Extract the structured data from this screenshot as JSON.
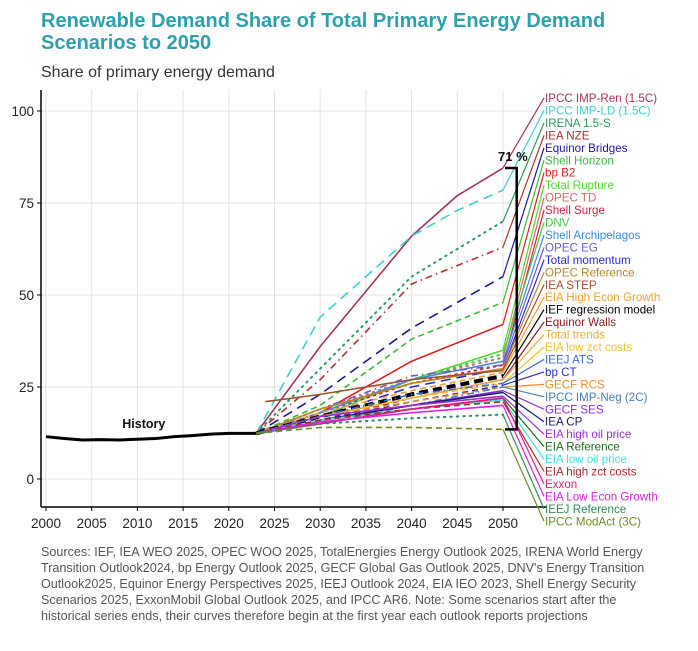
{
  "header": {
    "title": "Renewable Demand Share of Total Primary Energy Demand Scenarios to 2050",
    "subtitle": "Share of primary energy demand"
  },
  "footer": {
    "sources": "Sources: IEF, IEA WEO 2025, OPEC WOO 2025, TotalEnergies Energy Outlook 2025, IRENA World Energy Transition Outlook2024, bp Energy Outlook 2025, GECF Global Gas Outlook 2025, DNV's Energy Transition Outlook2025, Equinor Energy Perspectives 2025, IEEJ Outlook 2024, EIA IEO 2023, Shell Energy Security Scenarios 2025, ExxonMobil Global Outlook 2025, and IPCC AR6. Note: Some scenarios start after the historical series ends, their curves therefore begin at the first year each outlook reports projections"
  },
  "chart_data": {
    "type": "line",
    "title": "Renewable Demand Share of Total Primary Energy Demand Scenarios to 2050",
    "subtitle": "Share of primary energy demand",
    "xlabel": "",
    "ylabel": "Share of primary energy demand",
    "xlim": [
      1999.5,
      2060
    ],
    "ylim": [
      -7,
      106
    ],
    "x_ticks": [
      2000,
      2005,
      2010,
      2015,
      2020,
      2025,
      2030,
      2035,
      2040,
      2045,
      2050
    ],
    "y_ticks": [
      0,
      25,
      50,
      75,
      100
    ],
    "grid": true,
    "legend_placement": "right (direct labels)",
    "annotations": [
      {
        "text": "History",
        "x": 2009,
        "y": 15
      },
      {
        "text": "71 %",
        "x": 2050,
        "y": 88,
        "note": "range bracket between highest and lowest 2050 scenario"
      }
    ],
    "history": {
      "name": "History",
      "color": "#000000",
      "x": [
        2000,
        2002,
        2004,
        2006,
        2008,
        2010,
        2012,
        2014,
        2016,
        2018,
        2020,
        2023
      ],
      "y": [
        11.5,
        11.0,
        10.6,
        10.7,
        10.6,
        10.8,
        11.0,
        11.5,
        11.8,
        12.2,
        12.4,
        12.4
      ]
    },
    "series": [
      {
        "name": "IPCC IMP-Ren (1.5C)",
        "color": "#a3345a",
        "dash": "solid",
        "x": [
          2023,
          2030,
          2040,
          2045,
          2050
        ],
        "y": [
          12.4,
          36,
          66,
          77,
          84.5
        ]
      },
      {
        "name": "IPCC IMP-LD (1.5C)",
        "color": "#3fcfcf",
        "dash": "longdash",
        "x": [
          2023,
          2030,
          2040,
          2045,
          2050
        ],
        "y": [
          12.4,
          44,
          66,
          73,
          78.5
        ]
      },
      {
        "name": "IRENA 1.5-S",
        "color": "#2e9b5e",
        "dash": "dotted",
        "x": [
          2023,
          2030,
          2040,
          2050
        ],
        "y": [
          12.4,
          30,
          55,
          70
        ]
      },
      {
        "name": "IEA NZE",
        "color": "#b03030",
        "dash": "dashdot",
        "x": [
          2023,
          2030,
          2040,
          2050
        ],
        "y": [
          12.4,
          27,
          53,
          63
        ]
      },
      {
        "name": "Equinor Bridges",
        "color": "#1a1a9c",
        "dash": "longdash",
        "x": [
          2023,
          2030,
          2040,
          2050
        ],
        "y": [
          12.4,
          23,
          41,
          55
        ]
      },
      {
        "name": "Shell Horizon",
        "color": "#3cb83c",
        "dash": "dashed",
        "x": [
          2023,
          2030,
          2040,
          2050
        ],
        "y": [
          12.4,
          20,
          38,
          48
        ]
      },
      {
        "name": "bp B2",
        "color": "#e01e1e",
        "dash": "solid",
        "x": [
          2023,
          2030,
          2040,
          2050
        ],
        "y": [
          12.4,
          18,
          32,
          42
        ]
      },
      {
        "name": "Total Rupture",
        "color": "#4ddb2a",
        "dash": "solid",
        "x": [
          2023,
          2030,
          2040,
          2050
        ],
        "y": [
          12.4,
          17,
          27,
          35
        ]
      },
      {
        "name": "OPEC TD",
        "color": "#d46a6a",
        "dash": "dotted",
        "x": [
          2023,
          2030,
          2040,
          2050
        ],
        "y": [
          12.4,
          19,
          27,
          33
        ]
      },
      {
        "name": "Shell Surge",
        "color": "#d91e3c",
        "dash": "dotted",
        "x": [
          2023,
          2030,
          2040,
          2050
        ],
        "y": [
          12.4,
          18,
          26,
          31
        ]
      },
      {
        "name": "DNV",
        "color": "#46c846",
        "dash": "dotted",
        "x": [
          2023,
          2030,
          2040,
          2050
        ],
        "y": [
          12.4,
          18,
          27,
          34
        ]
      },
      {
        "name": "Shell Archipelagos",
        "color": "#3f8ae0",
        "dash": "solid",
        "x": [
          2023,
          2030,
          2040,
          2050
        ],
        "y": [
          12.4,
          18,
          27,
          32
        ]
      },
      {
        "name": "OPEC EG",
        "color": "#6a5acd",
        "dash": "dashdot",
        "x": [
          2023,
          2030,
          2040,
          2050
        ],
        "y": [
          12.4,
          19,
          28,
          31
        ]
      },
      {
        "name": "Total momentum",
        "color": "#2a2ad8",
        "dash": "longdash",
        "x": [
          2023,
          2030,
          2040,
          2050
        ],
        "y": [
          12.4,
          17,
          25,
          30
        ]
      },
      {
        "name": "OPEC Reference",
        "color": "#b8862b",
        "dash": "solid",
        "x": [
          2023,
          2030,
          2040,
          2050
        ],
        "y": [
          12.4,
          19,
          26,
          30
        ]
      },
      {
        "name": "IEA STEP",
        "color": "#a0522d",
        "dash": "solid",
        "x": [
          2024,
          2030,
          2040,
          2050
        ],
        "y": [
          21,
          23,
          27,
          29.5
        ]
      },
      {
        "name": "EIA High Econ Growth",
        "color": "#f0a030",
        "dash": "dashed",
        "x": [
          2023,
          2030,
          2040,
          2050
        ],
        "y": [
          12.4,
          18,
          24,
          29
        ]
      },
      {
        "name": "IEF regression model",
        "color": "#000000",
        "dash": "dashed-thick",
        "x": [
          2023,
          2030,
          2040,
          2050
        ],
        "y": [
          12.4,
          17,
          23,
          28
        ]
      },
      {
        "name": "Equinor Walls",
        "color": "#8b1a1a",
        "dash": "dashed",
        "x": [
          2023,
          2030,
          2040,
          2050
        ],
        "y": [
          12.4,
          16,
          22,
          27
        ]
      },
      {
        "name": "Total trends",
        "color": "#f2a93b",
        "dash": "solid",
        "x": [
          2023,
          2030,
          2040,
          2050
        ],
        "y": [
          12.4,
          17,
          22,
          27
        ]
      },
      {
        "name": "EIA low zct costs",
        "color": "#f2c12e",
        "dash": "dashed",
        "x": [
          2023,
          2030,
          2040,
          2050
        ],
        "y": [
          12.4,
          17,
          22,
          26
        ]
      },
      {
        "name": "IEEJ ATS",
        "color": "#4169e1",
        "dash": "dashdot",
        "x": [
          2023,
          2030,
          2040,
          2050
        ],
        "y": [
          12.4,
          17,
          23,
          26
        ]
      },
      {
        "name": "bp CT",
        "color": "#2b2bbf",
        "dash": "dashed",
        "x": [
          2023,
          2030,
          2040,
          2050
        ],
        "y": [
          12.4,
          16,
          21,
          25.5
        ]
      },
      {
        "name": "GECF RCS",
        "color": "#ef8a2a",
        "dash": "dashed",
        "x": [
          2023,
          2030,
          2040,
          2050
        ],
        "y": [
          12.4,
          17,
          21,
          25
        ]
      },
      {
        "name": "IPCC IMP-Neg (2C)",
        "color": "#4682b4",
        "dash": "dashdot",
        "x": [
          2023,
          2030,
          2040,
          2050
        ],
        "y": [
          12.4,
          15,
          20,
          25
        ]
      },
      {
        "name": "GECF SES",
        "color": "#8a2be2",
        "dash": "solid",
        "x": [
          2023,
          2030,
          2040,
          2050
        ],
        "y": [
          12.4,
          16,
          20,
          24
        ]
      },
      {
        "name": "IEA CP",
        "color": "#1a1a6e",
        "dash": "solid",
        "x": [
          2023,
          2030,
          2040,
          2050
        ],
        "y": [
          12.4,
          16,
          20,
          23.5
        ]
      },
      {
        "name": "EIA high oil price",
        "color": "#9932cc",
        "dash": "solid",
        "x": [
          2023,
          2030,
          2040,
          2050
        ],
        "y": [
          12.4,
          17,
          20,
          22.5
        ]
      },
      {
        "name": "EIA Reference",
        "color": "#1f6b1f",
        "dash": "solid",
        "x": [
          2023,
          2030,
          2040,
          2050
        ],
        "y": [
          12.4,
          16,
          19,
          22
        ]
      },
      {
        "name": "EIA low oil price",
        "color": "#40e0e0",
        "dash": "solid",
        "x": [
          2023,
          2030,
          2040,
          2050
        ],
        "y": [
          12.4,
          16,
          19,
          21.5
        ]
      },
      {
        "name": "EIA high zct costs",
        "color": "#a52a2a",
        "dash": "dashed",
        "x": [
          2023,
          2030,
          2040,
          2050
        ],
        "y": [
          12.4,
          16,
          19,
          21
        ]
      },
      {
        "name": "Exxon",
        "color": "#e6197a",
        "dash": "solid",
        "x": [
          2023,
          2030,
          2040,
          2050
        ],
        "y": [
          12.4,
          15,
          19,
          22
        ]
      },
      {
        "name": "EIA Low Econ Growth",
        "color": "#e020e0",
        "dash": "solid",
        "x": [
          2023,
          2030,
          2040,
          2050
        ],
        "y": [
          12.4,
          15.5,
          18,
          20
        ]
      },
      {
        "name": "IEEJ Reference",
        "color": "#2e8b57",
        "dash": "dotted",
        "x": [
          2023,
          2030,
          2040,
          2050
        ],
        "y": [
          12.4,
          15,
          16.5,
          17.5
        ]
      },
      {
        "name": "IPCC ModAct (3C)",
        "color": "#6b8e23",
        "dash": "dashed",
        "x": [
          2023,
          2030,
          2040,
          2050
        ],
        "y": [
          12.4,
          14,
          14,
          13.5
        ]
      }
    ]
  }
}
